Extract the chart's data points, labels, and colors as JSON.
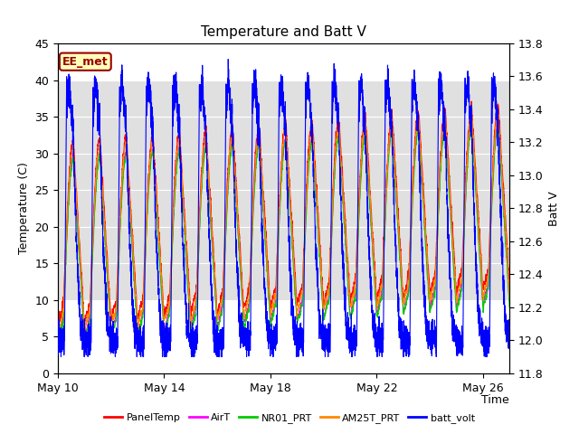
{
  "title": "Temperature and Batt V",
  "xlabel": "Time",
  "ylabel_left": "Temperature (C)",
  "ylabel_right": "Batt V",
  "annotation": "EE_met",
  "ylim_left": [
    0,
    45
  ],
  "ylim_right": [
    11.8,
    13.8
  ],
  "xlim_start": 0,
  "xlim_end": 17,
  "xtick_positions": [
    0,
    4,
    8,
    12,
    16
  ],
  "xtick_labels": [
    "May 10",
    "May 14",
    "May 18",
    "May 22",
    "May 26"
  ],
  "yticks_left": [
    0,
    5,
    10,
    15,
    20,
    25,
    30,
    35,
    40,
    45
  ],
  "yticks_right": [
    11.8,
    12.0,
    12.2,
    12.4,
    12.6,
    12.8,
    13.0,
    13.2,
    13.4,
    13.6,
    13.8
  ],
  "series_colors": {
    "PanelTemp": "#ff0000",
    "AirT": "#ff00ff",
    "NR01_PRT": "#00cc00",
    "AM25T_PRT": "#ff8800",
    "batt_volt": "#0000ff"
  },
  "legend_items": [
    {
      "label": "PanelTemp",
      "color": "#ff0000"
    },
    {
      "label": "AirT",
      "color": "#ff00ff"
    },
    {
      "label": "NR01_PRT",
      "color": "#00cc00"
    },
    {
      "label": "AM25T_PRT",
      "color": "#ff8800"
    },
    {
      "label": "batt_volt",
      "color": "#0000ff"
    }
  ],
  "fig_bg_color": "#ffffff",
  "plot_bg_color": "#ffffff",
  "gray_band_ymin": 10,
  "gray_band_ymax": 40,
  "gray_band_color": "#e0e0e0"
}
